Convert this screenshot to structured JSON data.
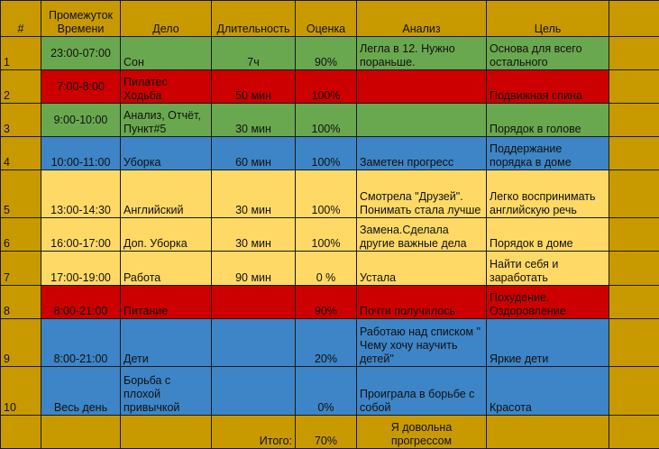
{
  "headers": {
    "num": "#",
    "time": "Промежуток Времени",
    "task": "Дело",
    "duration": "Длительность",
    "score": "Оценка",
    "analysis": "Анализ",
    "goal": "Цель"
  },
  "rows": [
    {
      "num": "1",
      "time": "23:00-07:00",
      "task": "Сон",
      "duration": "7ч",
      "score": "90%",
      "analysis": "Легла в 12. Нужно пораньше.",
      "goal": "Основа для всего остального",
      "color": "#6aa84f"
    },
    {
      "num": "2",
      "time": "7:00-8:00",
      "task": "Пилатес Ходьба",
      "duration": "50 мин",
      "score": "100%",
      "analysis": "",
      "goal": "Подвижная спина",
      "color": "#cc0000"
    },
    {
      "num": "3",
      "time": "9:00-10:00",
      "task": "Анализ, Отчёт, Пункт#5",
      "duration": "30 мин",
      "score": "100%",
      "analysis": "",
      "goal": "Порядок в голове",
      "color": "#6aa84f"
    },
    {
      "num": "4",
      "time": "10:00-11:00",
      "task": "Уборка",
      "duration": "60 мин",
      "score": "100%",
      "analysis": "Заметен прогресс",
      "goal": "Поддержание порядка в доме",
      "color": "#3d85c6"
    },
    {
      "num": "5",
      "time": "13:00-14:30",
      "task": "Английский",
      "duration": "30 мин",
      "score": "100%",
      "analysis": "Смотрела \"Друзей\". Понимать стала лучше",
      "goal": "Легко воспринимать английскую речь",
      "color": "#ffd966"
    },
    {
      "num": "6",
      "time": "16:00-17:00",
      "task": "Доп. Уборка",
      "duration": "30 мин",
      "score": "100%",
      "analysis": "Замена.Сделала другие важные дела",
      "goal": "Порядок в доме",
      "color": "#ffd966"
    },
    {
      "num": "7",
      "time": "17:00-19:00",
      "task": "Работа",
      "duration": "90 мин",
      "score": "0 %",
      "analysis": "Устала",
      "goal": "Найти себя и заработать",
      "color": "#ffd966"
    },
    {
      "num": "8",
      "time": "8:00-21:00",
      "task": "Питание",
      "duration": "",
      "score": "90%",
      "analysis": "Почти получилось",
      "goal": "Похудение. Оздоровление",
      "color": "#cc0000"
    },
    {
      "num": "9",
      "time": "8:00-21:00",
      "task": "Дети",
      "duration": "",
      "score": "20%",
      "analysis": "Работаю над списком \" Чему хочу научить детей\"",
      "goal": "Яркие дети",
      "color": "#3d85c6"
    },
    {
      "num": "10",
      "time": "Весь день",
      "task": "Борьба с плохой привычкой",
      "duration": "",
      "score": "0%",
      "analysis": "Проиграла в борьбе с собой",
      "goal": "Красота",
      "color": "#3d85c6"
    }
  ],
  "footer": {
    "total_label": "Итого:",
    "total_score": "70%",
    "comment": "Я довольна прогрессом"
  }
}
